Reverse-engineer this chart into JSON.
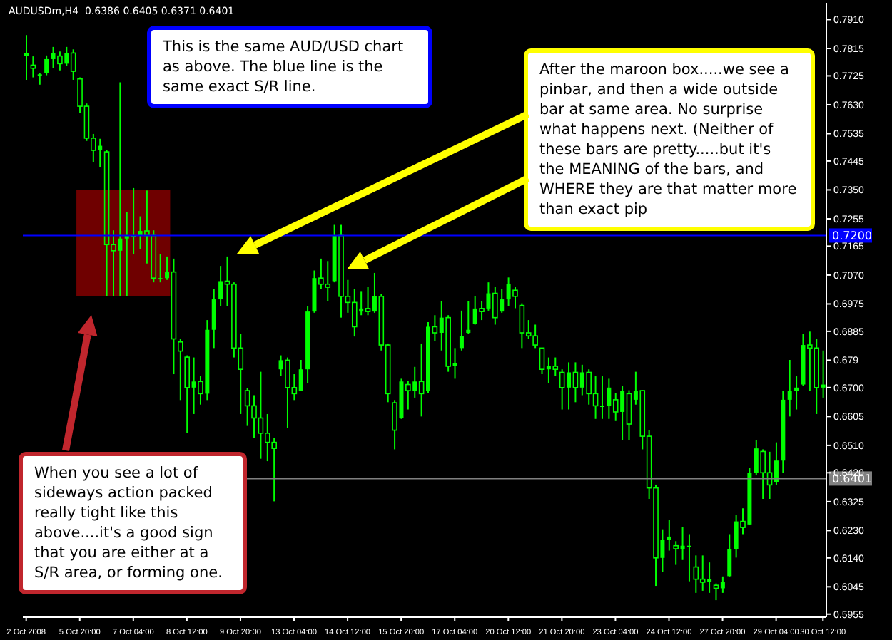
{
  "chart_data": {
    "type": "candlestick",
    "categories": [
      "2 Oct 2008",
      null,
      null,
      null,
      null,
      null,
      null,
      null,
      "5 Oct 20:00",
      null,
      null,
      null,
      null,
      null,
      null,
      null,
      "7 Oct 04:00",
      null,
      null,
      null,
      null,
      null,
      null,
      null,
      "8 Oct 12:00",
      null,
      null,
      null,
      null,
      null,
      null,
      null,
      "9 Oct 20:00",
      null,
      null,
      null,
      null,
      null,
      null,
      null,
      "13 Oct 04:00",
      null,
      null,
      null,
      null,
      null,
      null,
      null,
      "14 Oct 12:00",
      null,
      null,
      null,
      null,
      null,
      null,
      null,
      "15 Oct 20:00",
      null,
      null,
      null,
      null,
      null,
      null,
      null,
      "17 Oct 04:00",
      null,
      null,
      null,
      null,
      null,
      null,
      null,
      "20 Oct 12:00",
      null,
      null,
      null,
      null,
      null,
      null,
      null,
      "21 Oct 20:00",
      null,
      null,
      null,
      null,
      null,
      null,
      null,
      "23 Oct 04:00",
      null,
      null,
      null,
      null,
      null,
      null,
      null,
      "24 Oct 12:00",
      null,
      null,
      null,
      null,
      null,
      null,
      null,
      "27 Oct 20:00",
      null,
      null,
      null,
      null,
      null,
      null,
      null,
      "29 Oct 04:00",
      null,
      null,
      null,
      null,
      null,
      null,
      "30 Oct 12:00"
    ],
    "series": [
      {
        "color": "#00ff00",
        "ohlc": [
          [
            0.779,
            0.7859,
            0.7712,
            0.78
          ],
          [
            0.776,
            0.7789,
            0.772,
            0.775
          ],
          [
            0.7725,
            0.7735,
            0.7696,
            0.773
          ],
          [
            0.7735,
            0.7792,
            0.7727,
            0.778
          ],
          [
            0.778,
            0.782,
            0.7751,
            0.78
          ],
          [
            0.779,
            0.7805,
            0.7743,
            0.7765
          ],
          [
            0.7765,
            0.782,
            0.7758,
            0.78
          ],
          [
            0.78,
            0.7812,
            0.7712,
            0.774
          ],
          [
            0.7715,
            0.772,
            0.7603,
            0.7625
          ],
          [
            0.7625,
            0.7634,
            0.7511,
            0.752
          ],
          [
            0.752,
            0.7534,
            0.7441,
            0.748
          ],
          [
            0.748,
            0.7518,
            0.7426,
            0.7495
          ],
          [
            0.7475,
            0.748,
            0.7,
            0.717
          ],
          [
            0.717,
            0.7217,
            0.7,
            0.715
          ],
          [
            0.715,
            0.7704,
            0.7,
            0.719
          ],
          [
            0.719,
            0.7278,
            0.7,
            0.72
          ],
          [
            0.72,
            0.7356,
            0.7139,
            0.72
          ],
          [
            0.72,
            0.7263,
            0.7155,
            0.7215
          ],
          [
            0.7215,
            0.7348,
            0.7108,
            0.72
          ],
          [
            0.72,
            0.7217,
            0.7046,
            0.706
          ],
          [
            0.706,
            0.7139,
            0.7046,
            0.706
          ],
          [
            0.706,
            0.7131,
            0.7054,
            0.708
          ],
          [
            0.708,
            0.7124,
            0.6744,
            0.686
          ],
          [
            0.685,
            0.686,
            0.6659,
            0.682
          ],
          [
            0.68,
            0.6806,
            0.6551,
            0.67
          ],
          [
            0.67,
            0.6799,
            0.6613,
            0.672
          ],
          [
            0.672,
            0.6737,
            0.6644,
            0.668
          ],
          [
            0.668,
            0.6922,
            0.6659,
            0.689
          ],
          [
            0.689,
            0.7023,
            0.683,
            0.699
          ],
          [
            0.699,
            0.71,
            0.6969,
            0.705
          ],
          [
            0.705,
            0.7131,
            0.6969,
            0.704
          ],
          [
            0.704,
            0.7046,
            0.6799,
            0.683
          ],
          [
            0.683,
            0.6876,
            0.6613,
            0.676
          ],
          [
            0.669,
            0.6698,
            0.6574,
            0.664
          ],
          [
            0.664,
            0.6675,
            0.6535,
            0.66
          ],
          [
            0.66,
            0.6752,
            0.6466,
            0.655
          ],
          [
            0.655,
            0.6613,
            0.6458,
            0.652
          ],
          [
            0.652,
            0.6535,
            0.6326,
            0.65
          ],
          [
            0.676,
            0.6806,
            0.6737,
            0.679
          ],
          [
            0.679,
            0.6799,
            0.6566,
            0.67
          ],
          [
            0.67,
            0.6744,
            0.6659,
            0.668
          ],
          [
            0.669,
            0.6791,
            0.669,
            0.676
          ],
          [
            0.676,
            0.6969,
            0.6714,
            0.695
          ],
          [
            0.695,
            0.7085,
            0.6946,
            0.706
          ],
          [
            0.706,
            0.7124,
            0.7023,
            0.704
          ],
          [
            0.704,
            0.7116,
            0.6984,
            0.703
          ],
          [
            0.705,
            0.7235,
            0.7046,
            0.72
          ],
          [
            0.72,
            0.7235,
            0.693,
            0.7
          ],
          [
            0.7,
            0.7054,
            0.6946,
            0.698
          ],
          [
            0.698,
            0.7023,
            0.6868,
            0.69
          ],
          [
            0.695,
            0.7015,
            0.6938,
            0.696
          ],
          [
            0.696,
            0.7031,
            0.6938,
            0.695
          ],
          [
            0.695,
            0.7077,
            0.6946,
            0.7
          ],
          [
            0.7,
            0.7008,
            0.6822,
            0.684
          ],
          [
            0.684,
            0.6845,
            0.6652,
            0.668
          ],
          [
            0.665,
            0.6659,
            0.6497,
            0.656
          ],
          [
            0.66,
            0.6729,
            0.6597,
            0.672
          ],
          [
            0.671,
            0.6721,
            0.6628,
            0.669
          ],
          [
            0.669,
            0.6768,
            0.6667,
            0.672
          ],
          [
            0.672,
            0.6845,
            0.6605,
            0.668
          ],
          [
            0.669,
            0.6915,
            0.6683,
            0.69
          ],
          [
            0.69,
            0.6938,
            0.6853,
            0.688
          ],
          [
            0.688,
            0.6984,
            0.6822,
            0.693
          ],
          [
            0.693,
            0.6938,
            0.6752,
            0.677
          ],
          [
            0.677,
            0.683,
            0.6729,
            0.678
          ],
          [
            0.683,
            0.6953,
            0.6822,
            0.687
          ],
          [
            0.688,
            0.6984,
            0.6876,
            0.689
          ],
          [
            0.691,
            0.7,
            0.6907,
            0.696
          ],
          [
            0.696,
            0.6984,
            0.6922,
            0.695
          ],
          [
            0.696,
            0.7046,
            0.6953,
            0.701
          ],
          [
            0.701,
            0.7031,
            0.6907,
            0.693
          ],
          [
            0.695,
            0.7023,
            0.6946,
            0.699
          ],
          [
            0.699,
            0.7062,
            0.6969,
            0.704
          ],
          [
            0.702,
            0.7031,
            0.6961,
            0.7
          ],
          [
            0.697,
            0.6977,
            0.683,
            0.688
          ],
          [
            0.688,
            0.6922,
            0.686,
            0.687
          ],
          [
            0.687,
            0.6907,
            0.683,
            0.684
          ],
          [
            0.683,
            0.683,
            0.6744,
            0.676
          ],
          [
            0.676,
            0.6799,
            0.6714,
            0.677
          ],
          [
            0.677,
            0.6799,
            0.6737,
            0.676
          ],
          [
            0.675,
            0.676,
            0.6628,
            0.67
          ],
          [
            0.67,
            0.6783,
            0.6628,
            0.675
          ],
          [
            0.675,
            0.6783,
            0.6652,
            0.67
          ],
          [
            0.67,
            0.6775,
            0.6675,
            0.675
          ],
          [
            0.675,
            0.676,
            0.6644,
            0.668
          ],
          [
            0.668,
            0.6737,
            0.6597,
            0.664
          ],
          [
            0.664,
            0.6737,
            0.6597,
            0.664
          ],
          [
            0.664,
            0.6729,
            0.6597,
            0.67
          ],
          [
            0.666,
            0.6683,
            0.659,
            0.662
          ],
          [
            0.662,
            0.6706,
            0.6528,
            0.669
          ],
          [
            0.668,
            0.6691,
            0.6528,
            0.658
          ],
          [
            0.666,
            0.6752,
            0.6644,
            0.669
          ],
          [
            0.669,
            0.6691,
            0.6497,
            0.654
          ],
          [
            0.654,
            0.6559,
            0.6334,
            0.637
          ],
          [
            0.637,
            0.6381,
            0.6048,
            0.614
          ],
          [
            0.614,
            0.6234,
            0.6094,
            0.62
          ],
          [
            0.62,
            0.6265,
            0.6164,
            0.621
          ],
          [
            0.618,
            0.6195,
            0.6117,
            0.617
          ],
          [
            0.617,
            0.6241,
            0.6133,
            0.618
          ],
          [
            0.618,
            0.6218,
            0.6063,
            0.618
          ],
          [
            0.611,
            0.6148,
            0.6025,
            0.607
          ],
          [
            0.607,
            0.6148,
            0.6032,
            0.606
          ],
          [
            0.606,
            0.6125,
            0.6025,
            0.607
          ],
          [
            0.605,
            0.6056,
            0.6001,
            0.604
          ],
          [
            0.604,
            0.6079,
            0.6025,
            0.606
          ],
          [
            0.608,
            0.6218,
            0.6079,
            0.617
          ],
          [
            0.617,
            0.628,
            0.6141,
            0.626
          ],
          [
            0.626,
            0.6303,
            0.6218,
            0.624
          ],
          [
            0.625,
            0.6435,
            0.6249,
            0.642
          ],
          [
            0.642,
            0.6528,
            0.6412,
            0.65
          ],
          [
            0.649,
            0.6497,
            0.6334,
            0.642
          ],
          [
            0.642,
            0.6489,
            0.6334,
            0.638
          ],
          [
            0.639,
            0.652,
            0.6381,
            0.646
          ],
          [
            0.646,
            0.669,
            0.6419,
            0.666
          ],
          [
            0.666,
            0.6791,
            0.6605,
            0.669
          ],
          [
            0.669,
            0.6737,
            0.6628,
            0.67
          ],
          [
            0.671,
            0.6876,
            0.6706,
            0.684
          ],
          [
            0.684,
            0.6884,
            0.669,
            0.683
          ],
          [
            0.683,
            0.686,
            0.6613,
            0.67
          ],
          [
            0.67,
            0.6822,
            0.6667,
            0.671
          ]
        ]
      }
    ],
    "ylim": [
      0.5945,
      0.7965
    ],
    "yticks": [
      {
        "value": 0.791,
        "label": "0.7910"
      },
      0.7815,
      0.7725,
      {
        "value": 0.763,
        "label": "0.7630"
      },
      0.7535,
      0.7445,
      {
        "value": 0.735,
        "label": "0.7350"
      },
      0.7255,
      0.7165,
      {
        "value": 0.707,
        "label": "0.7070"
      },
      0.6975,
      0.6885,
      0.679,
      {
        "value": 0.67,
        "label": "0.6700"
      },
      0.6605,
      {
        "value": 0.651,
        "label": "0.6510"
      },
      {
        "value": 0.642,
        "label": "0.6420"
      },
      0.6325,
      {
        "value": 0.623,
        "label": "0.6230"
      },
      {
        "value": 0.614,
        "label": "0.6140"
      },
      0.6045,
      0.5955
    ],
    "ref_lines": [
      {
        "axis": "y",
        "value": 0.72,
        "label": "0.7200",
        "color": "#0000ff"
      },
      {
        "axis": "y",
        "value": 0.6401,
        "label": "0.6401",
        "color": "#808080"
      }
    ],
    "bands": [
      {
        "axis": "y",
        "from": 0.7,
        "to": 0.735,
        "color": "#8b0000"
      }
    ],
    "annotations": [
      "AUDUSDm,H4  0.6386 0.6405 0.6371 0.6401",
      "This is the same AUD/USD chart as above. The blue line is the same exact S/R line.",
      "After the maroon box.....we see a pinbar, and then a wide outside bar at same area. No surprise what happens next. (Neither of these bars are pretty.....but it's the MEANING of the bars, and WHERE they are that matter more than exact pip",
      "When you see a lot of sideways action packed really tight like this above....it's a good sign that you are either at a S/R area, or forming one."
    ],
    "grid": false,
    "legend": false
  }
}
